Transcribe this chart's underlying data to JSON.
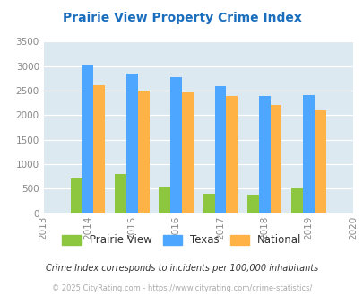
{
  "title": "Prairie View Property Crime Index",
  "years": [
    2013,
    2014,
    2015,
    2016,
    2017,
    2018,
    2019,
    2020
  ],
  "bar_years": [
    2014,
    2015,
    2016,
    2017,
    2018,
    2019
  ],
  "prairie_view": [
    700,
    800,
    550,
    400,
    370,
    500
  ],
  "texas": [
    3020,
    2840,
    2780,
    2590,
    2380,
    2410
  ],
  "national": [
    2600,
    2500,
    2470,
    2380,
    2200,
    2100
  ],
  "color_prairie": "#8dc63f",
  "color_texas": "#4da6ff",
  "color_national": "#ffb347",
  "bg_color": "#dce9f0",
  "ylim": [
    0,
    3500
  ],
  "yticks": [
    0,
    500,
    1000,
    1500,
    2000,
    2500,
    3000,
    3500
  ],
  "title_color": "#1a6ebd",
  "footer_note": "Crime Index corresponds to incidents per 100,000 inhabitants",
  "copyright": "© 2025 CityRating.com - https://www.cityrating.com/crime-statistics/",
  "legend_labels": [
    "Prairie View",
    "Texas",
    "National"
  ]
}
